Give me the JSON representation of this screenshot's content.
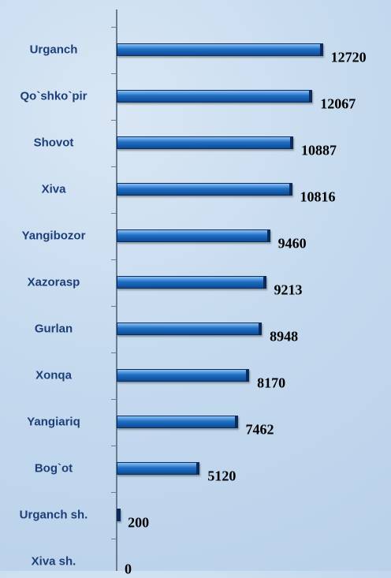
{
  "chart_data": {
    "type": "bar",
    "orientation": "horizontal",
    "categories": [
      "Urganch",
      "Qo`shko`pir",
      "Shovot",
      "Xiva",
      "Yangibozor",
      "Xazorasp",
      "Gurlan",
      "Xonqa",
      "Yangiariq",
      "Bog`ot",
      "Urganch sh.",
      "Xiva sh."
    ],
    "values": [
      12720,
      12067,
      10887,
      10816,
      9460,
      9213,
      8948,
      8170,
      7462,
      5120,
      200,
      0
    ],
    "color": "#1f6fc5",
    "xlim": [
      0,
      14000
    ]
  }
}
